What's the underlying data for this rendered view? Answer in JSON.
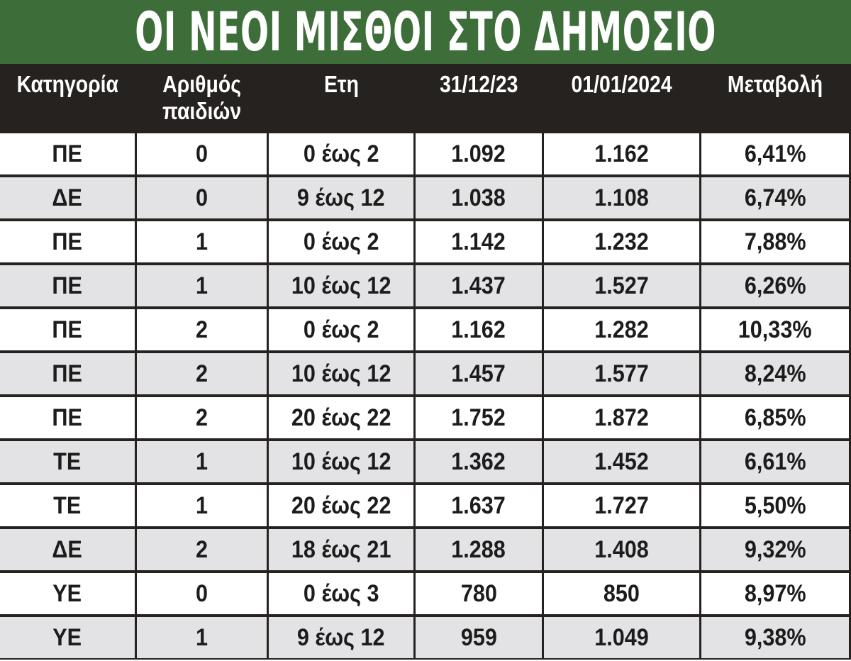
{
  "title": "ΟΙ ΝΕΟΙ ΜΙΣΘΟΙ ΣΤΟ ΔΗΜΟΣΙΟ",
  "colors": {
    "title_bar": "#3d6e3a",
    "header_bg": "#262220",
    "row_alt": "#e3e3e5",
    "row_white": "#ffffff"
  },
  "chart_data": {
    "type": "table",
    "title": "ΟΙ ΝΕΟΙ ΜΙΣΘΟΙ ΣΤΟ ΔΗΜΟΣΙΟ",
    "columns": [
      "Κατηγορία",
      "Αριθμός\nπαιδιών",
      "Ετη",
      "31/12/23",
      "01/01/2024",
      "Μεταβολή"
    ],
    "rows": [
      [
        "ΠΕ",
        "0",
        "0 έως 2",
        "1.092",
        "1.162",
        "6,41%"
      ],
      [
        "ΔΕ",
        "0",
        "9 έως 12",
        "1.038",
        "1.108",
        "6,74%"
      ],
      [
        "ΠΕ",
        "1",
        "0 έως 2",
        "1.142",
        "1.232",
        "7,88%"
      ],
      [
        "ΠΕ",
        "1",
        "10 έως 12",
        "1.437",
        "1.527",
        "6,26%"
      ],
      [
        "ΠΕ",
        "2",
        "0 έως 2",
        "1.162",
        "1.282",
        "10,33%"
      ],
      [
        "ΠΕ",
        "2",
        "10 έως 12",
        "1.457",
        "1.577",
        "8,24%"
      ],
      [
        "ΠΕ",
        "2",
        "20 έως 22",
        "1.752",
        "1.872",
        "6,85%"
      ],
      [
        "ΤΕ",
        "1",
        "10 έως 12",
        "1.362",
        "1.452",
        "6,61%"
      ],
      [
        "ΤΕ",
        "1",
        "20 έως 22",
        "1.637",
        "1.727",
        "5,50%"
      ],
      [
        "ΔΕ",
        "2",
        "18 έως 21",
        "1.288",
        "1.408",
        "9,32%"
      ],
      [
        "ΥΕ",
        "0",
        "0 έως 3",
        "780",
        "850",
        "8,97%"
      ],
      [
        "ΥΕ",
        "1",
        "9 έως 12",
        "959",
        "1.049",
        "9,38%"
      ]
    ]
  }
}
